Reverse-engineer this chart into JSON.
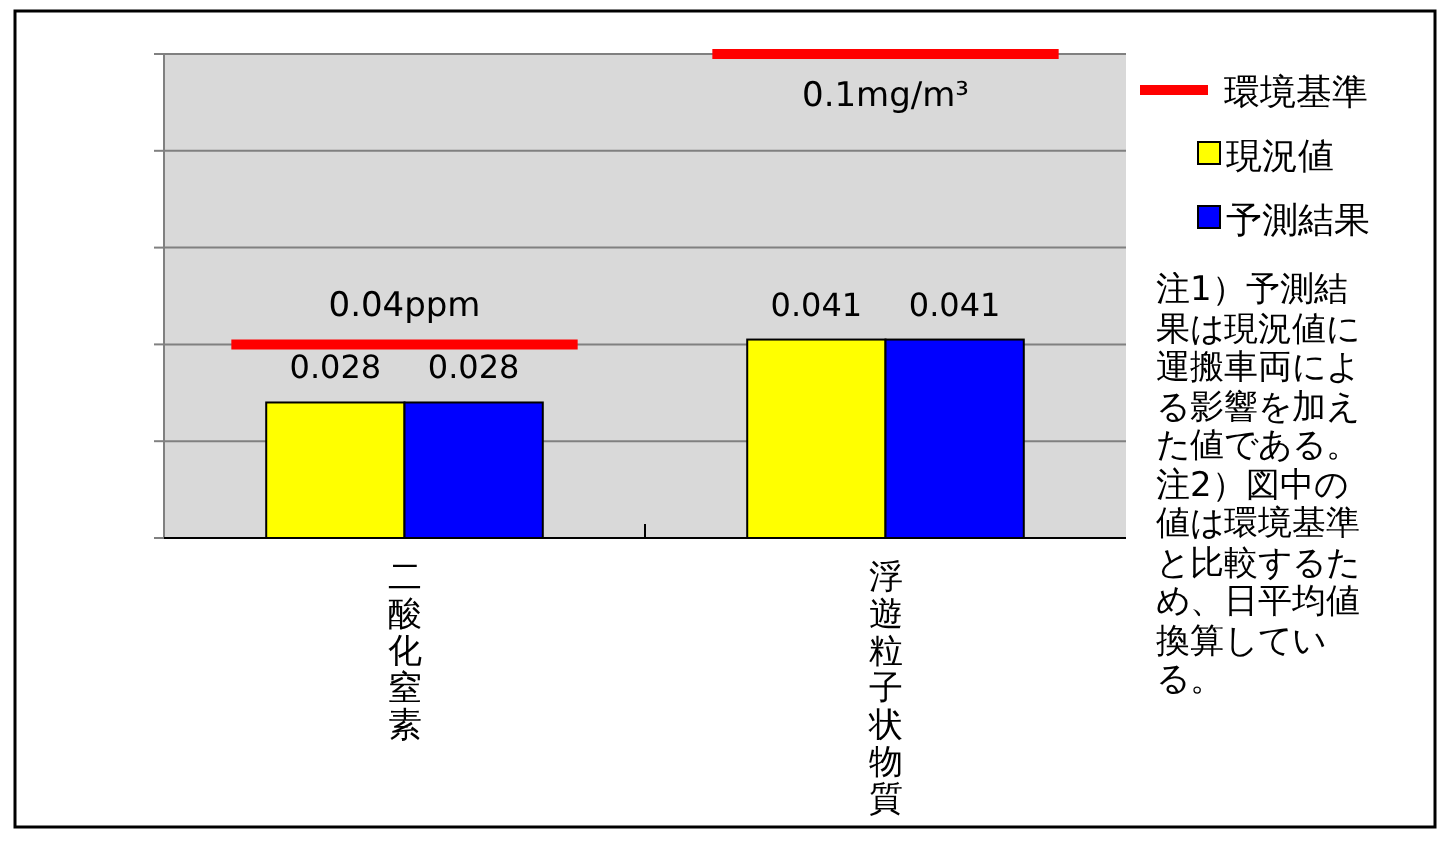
{
  "chart_data": {
    "type": "bar",
    "categories": [
      "二酸化窒素",
      "浮遊粒子状物質"
    ],
    "series": [
      {
        "name": "現況値",
        "color": "#ffff00",
        "values": [
          0.028,
          0.041
        ]
      },
      {
        "name": "予測結果",
        "color": "#0000ff",
        "values": [
          0.028,
          0.041
        ]
      }
    ],
    "ref_lines": [
      {
        "axis": "y",
        "value": 0.04,
        "label": "0.04ppm",
        "color": "#ff0000"
      },
      {
        "axis": "y",
        "value": 0.1,
        "label": "0.1mg/m³",
        "color": "#ff0000"
      }
    ],
    "legend_title": "環境基準",
    "ylim": [
      0,
      0.1
    ],
    "yticks": [
      {
        "value": 0,
        "label": null
      },
      {
        "value": 0.02,
        "label": null
      },
      {
        "value": 0.04,
        "label": null
      },
      {
        "value": 0.06,
        "label": null
      },
      {
        "value": 0.08,
        "label": null
      },
      {
        "value": 0.1,
        "label": null
      }
    ],
    "tick_labels": "x",
    "grid": "y",
    "legend": "right",
    "data_labels": true,
    "annotations": [
      "注1）予測結果は現況値に運搬車両による影響を加えた値である。",
      "注2）図中の値は環境基準と比較するため、日平均値換算している。"
    ]
  }
}
